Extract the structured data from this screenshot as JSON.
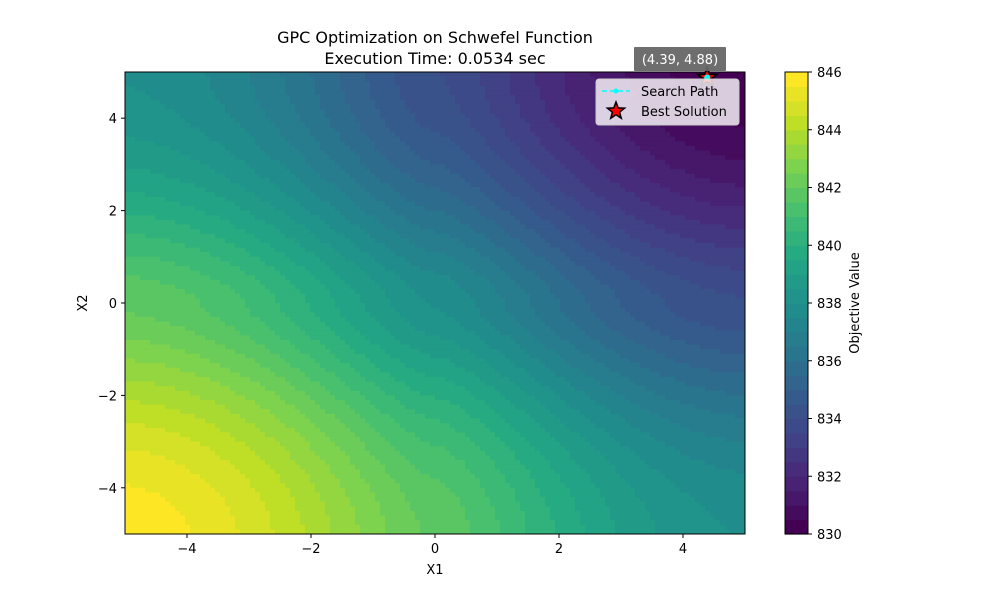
{
  "chart_data": {
    "type": "heatmap",
    "title_lines": [
      "GPC Optimization on Schwefel Function",
      "Execution Time: 0.0534 sec"
    ],
    "xlabel": "X1",
    "ylabel": "X2",
    "xlim": [
      -5,
      5
    ],
    "ylim": [
      -5,
      5
    ],
    "xticks": [
      -4,
      -2,
      0,
      2,
      4
    ],
    "yticks": [
      -4,
      -2,
      0,
      2,
      4
    ],
    "tick_labels": {
      "x": [
        "−4",
        "−2",
        "0",
        "2",
        "4"
      ],
      "y": [
        "−4",
        "−2",
        "0",
        "2",
        "4"
      ]
    },
    "colormap": "viridis",
    "function": "schwefel",
    "contour_levels": [
      830,
      846
    ],
    "colorbar": {
      "label": "Objective Value",
      "ticks": [
        830,
        832,
        834,
        836,
        838,
        840,
        842,
        844,
        846
      ],
      "tick_labels": [
        "830",
        "832",
        "834",
        "836",
        "838",
        "840",
        "842",
        "844",
        "846"
      ],
      "range": [
        830,
        846
      ]
    },
    "search_path": {
      "name": "Search Path",
      "color": "#00ffff",
      "points": [
        [
          4.39,
          4.88
        ]
      ]
    },
    "best_solution": {
      "name": "Best Solution",
      "x": 4.39,
      "y": 4.88,
      "label": "(4.39, 4.88)",
      "color": "#ff0000"
    },
    "legend": {
      "placement": "top-right",
      "entries": [
        "Search Path",
        "Best Solution"
      ]
    },
    "grid": false
  }
}
